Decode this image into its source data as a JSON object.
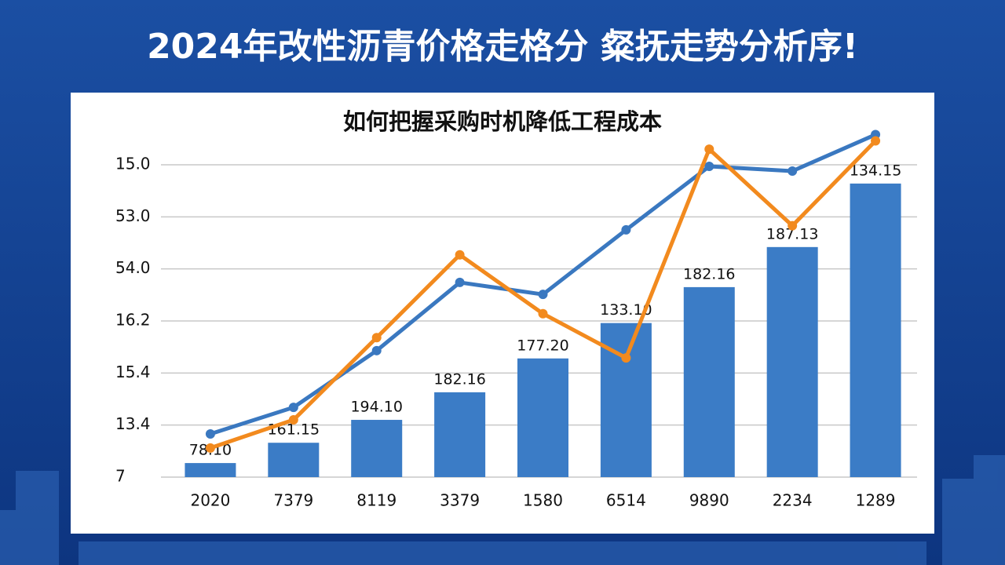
{
  "chart_data": {
    "type": "bar-line",
    "title": "2024年改性沥青价格走格分 粲抚走势分析序!",
    "subtitle": "如何把握采购时机降低工程成本",
    "categories": [
      "2020",
      "7379",
      "8119",
      "3379",
      "1580",
      "6514",
      "9890",
      "2234",
      "1289"
    ],
    "values": [
      0.27,
      0.66,
      1.1,
      1.63,
      2.28,
      2.96,
      3.65,
      4.42,
      5.64
    ],
    "value_labels": [
      "78.10",
      "161.15",
      "194.10",
      "182.16",
      "177.20",
      "133.10",
      "182.16",
      "187.13",
      "134.15"
    ],
    "color": "#3b7cc6",
    "series": [
      {
        "color": "#3a78c0",
        "values": [
          0.83,
          1.34,
          2.43,
          3.74,
          3.51,
          4.75,
          5.97,
          5.88,
          6.58
        ]
      },
      {
        "color": "#f28a1e",
        "values": [
          0.56,
          1.1,
          2.68,
          4.27,
          3.14,
          2.29,
          6.3,
          4.83,
          6.46
        ]
      }
    ],
    "ylim": [
      0,
      6.7
    ],
    "yticks": [
      {
        "value": 0,
        "label": "7"
      },
      {
        "value": 1,
        "label": "13.4"
      },
      {
        "value": 2,
        "label": "15.4"
      },
      {
        "value": 3,
        "label": "16.2"
      },
      {
        "value": 4,
        "label": "54.0"
      },
      {
        "value": 5,
        "label": "53.0"
      },
      {
        "value": 6,
        "label": "15.0"
      }
    ],
    "grid": true
  }
}
